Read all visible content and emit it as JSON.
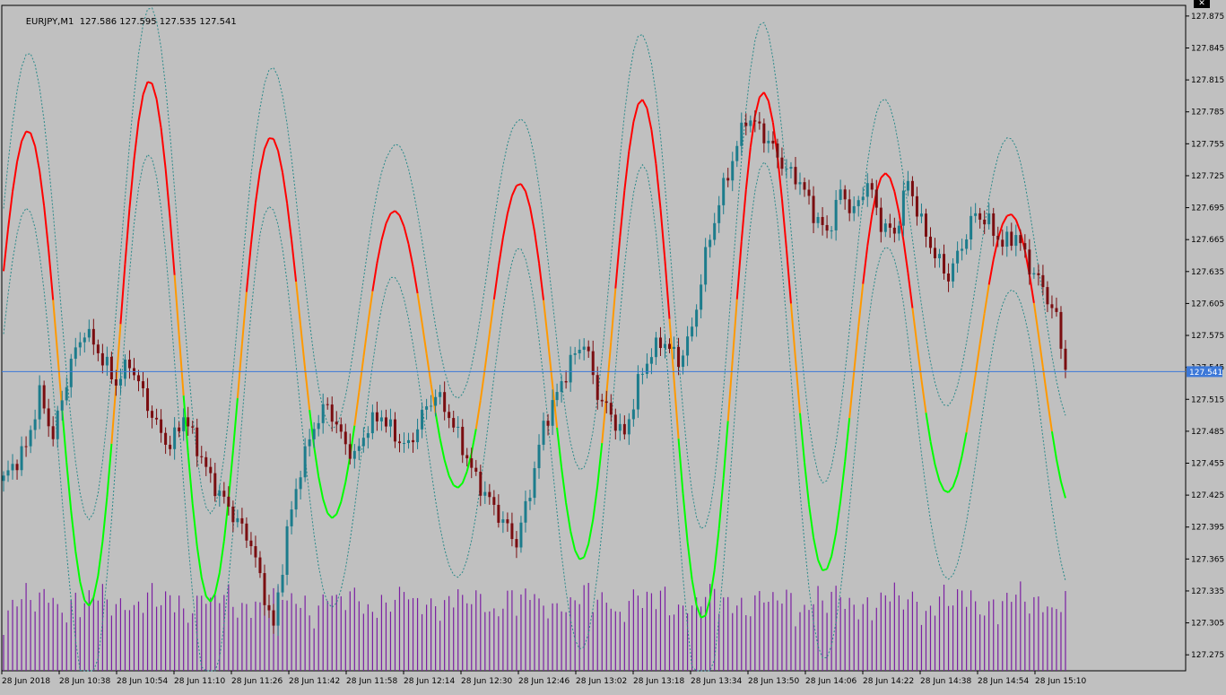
{
  "chart_header": {
    "symbol": "EURJPY,M1",
    "open": "127.586",
    "high": "127.595",
    "low": "127.535",
    "close": "127.541",
    "close_icon": "close-icon",
    "close_glyph": "✕"
  },
  "colors": {
    "background": "#c0c0c0",
    "bull": "#1c7c8c",
    "bear": "#7a0d10",
    "line_high": "#ff0000",
    "line_mid": "#ff9900",
    "line_low": "#00ff00",
    "band": "#2a8a8a",
    "volume": "#7b1fa2",
    "price_line": "#3c78d8",
    "axis": "#000000"
  },
  "chart_data": {
    "type": "candlestick",
    "y_range": [
      127.26,
      127.885
    ],
    "y_ticks": [
      "127.875",
      "127.845",
      "127.815",
      "127.785",
      "127.755",
      "127.725",
      "127.695",
      "127.665",
      "127.635",
      "127.605",
      "127.575",
      "127.545",
      "127.515",
      "127.485",
      "127.455",
      "127.425",
      "127.395",
      "127.365",
      "127.335",
      "127.305",
      "127.275"
    ],
    "current_price": "127.541",
    "x_labels": [
      "28 Jun 2018",
      "28 Jun 10:38",
      "28 Jun 10:54",
      "28 Jun 11:10",
      "28 Jun 11:26",
      "28 Jun 11:42",
      "28 Jun 11:58",
      "28 Jun 12:14",
      "28 Jun 12:30",
      "28 Jun 12:46",
      "28 Jun 13:02",
      "28 Jun 13:18",
      "28 Jun 13:34",
      "28 Jun 13:50",
      "28 Jun 14:06",
      "28 Jun 14:22",
      "28 Jun 14:38",
      "28 Jun 14:54",
      "28 Jun 15:10"
    ],
    "close_anchors": [
      [
        0,
        127.44
      ],
      [
        5,
        127.47
      ],
      [
        8,
        127.52
      ],
      [
        11,
        127.48
      ],
      [
        15,
        127.55
      ],
      [
        18,
        127.58
      ],
      [
        21,
        127.56
      ],
      [
        25,
        127.53
      ],
      [
        28,
        127.55
      ],
      [
        31,
        127.52
      ],
      [
        34,
        127.49
      ],
      [
        37,
        127.47
      ],
      [
        40,
        127.5
      ],
      [
        43,
        127.47
      ],
      [
        46,
        127.44
      ],
      [
        49,
        127.42
      ],
      [
        52,
        127.4
      ],
      [
        55,
        127.38
      ],
      [
        58,
        127.33
      ],
      [
        60,
        127.3
      ],
      [
        63,
        127.39
      ],
      [
        66,
        127.45
      ],
      [
        69,
        127.49
      ],
      [
        72,
        127.51
      ],
      [
        75,
        127.48
      ],
      [
        78,
        127.46
      ],
      [
        81,
        127.49
      ],
      [
        84,
        127.5
      ],
      [
        87,
        127.48
      ],
      [
        90,
        127.47
      ],
      [
        93,
        127.5
      ],
      [
        96,
        127.52
      ],
      [
        99,
        127.5
      ],
      [
        102,
        127.47
      ],
      [
        105,
        127.44
      ],
      [
        108,
        127.42
      ],
      [
        111,
        127.4
      ],
      [
        114,
        127.38
      ],
      [
        117,
        127.43
      ],
      [
        120,
        127.49
      ],
      [
        123,
        127.52
      ],
      [
        126,
        127.55
      ],
      [
        129,
        127.57
      ],
      [
        132,
        127.52
      ],
      [
        135,
        127.5
      ],
      [
        138,
        127.48
      ],
      [
        141,
        127.53
      ],
      [
        144,
        127.56
      ],
      [
        147,
        127.57
      ],
      [
        150,
        127.55
      ],
      [
        153,
        127.58
      ],
      [
        156,
        127.65
      ],
      [
        159,
        127.7
      ],
      [
        162,
        127.74
      ],
      [
        165,
        127.78
      ],
      [
        168,
        127.77
      ],
      [
        171,
        127.75
      ],
      [
        174,
        127.73
      ],
      [
        177,
        127.72
      ],
      [
        180,
        127.69
      ],
      [
        183,
        127.67
      ],
      [
        186,
        127.71
      ],
      [
        189,
        127.69
      ],
      [
        192,
        127.72
      ],
      [
        195,
        127.68
      ],
      [
        198,
        127.67
      ],
      [
        201,
        127.72
      ],
      [
        204,
        127.68
      ],
      [
        207,
        127.65
      ],
      [
        210,
        127.63
      ],
      [
        213,
        127.66
      ],
      [
        216,
        127.69
      ],
      [
        219,
        127.68
      ],
      [
        222,
        127.66
      ],
      [
        225,
        127.67
      ],
      [
        228,
        127.64
      ],
      [
        231,
        127.62
      ],
      [
        234,
        127.59
      ],
      [
        236,
        127.545
      ]
    ],
    "candle_count": 237,
    "volume_bars": 237
  }
}
